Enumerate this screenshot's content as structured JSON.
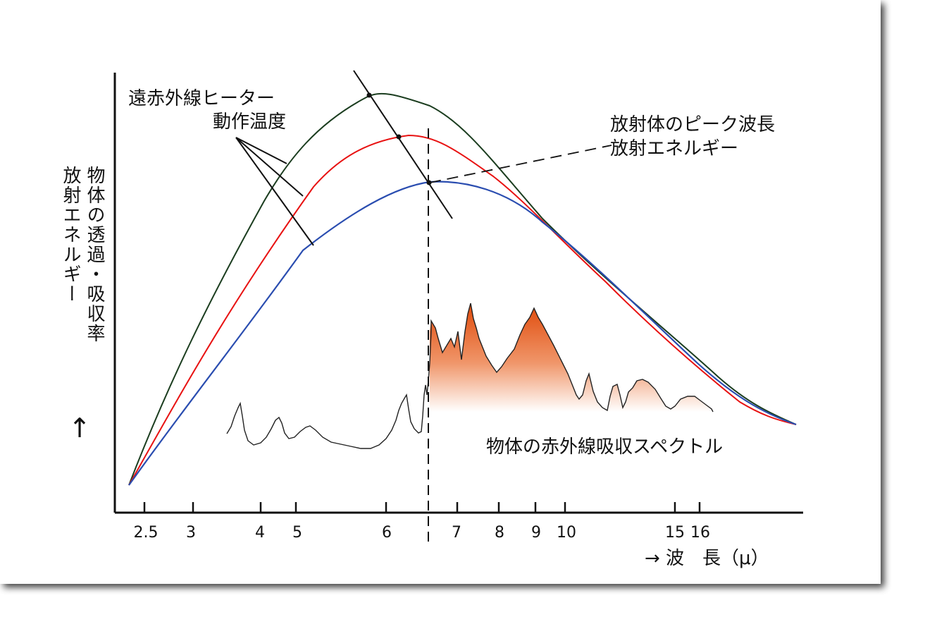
{
  "labels": {
    "heater_line1": "遠赤外線ヒーター",
    "heater_line2": "動作温度",
    "peak_line1": "放射体のピーク波長",
    "peak_line2": "放射エネルギー",
    "absorption": "物体の赤外線吸収スペクトル",
    "y_axis_col1": "物体の透過・吸収率",
    "y_axis_col2": "放射エネルギー",
    "y_arrow": "↑",
    "x_axis": "→ 波　長（μ）"
  },
  "x_ticks": [
    "2.5",
    "3",
    "4",
    "5",
    "6",
    "7",
    "8",
    "9",
    "10",
    "15",
    "16"
  ],
  "colors": {
    "curve_high": "#1b3d1f",
    "curve_mid": "#e81212",
    "curve_low": "#2a4db0",
    "absorption_fill_top": "#e04a0a",
    "absorption_fill_bottom": "#ffffff",
    "axis": "#111111"
  }
}
